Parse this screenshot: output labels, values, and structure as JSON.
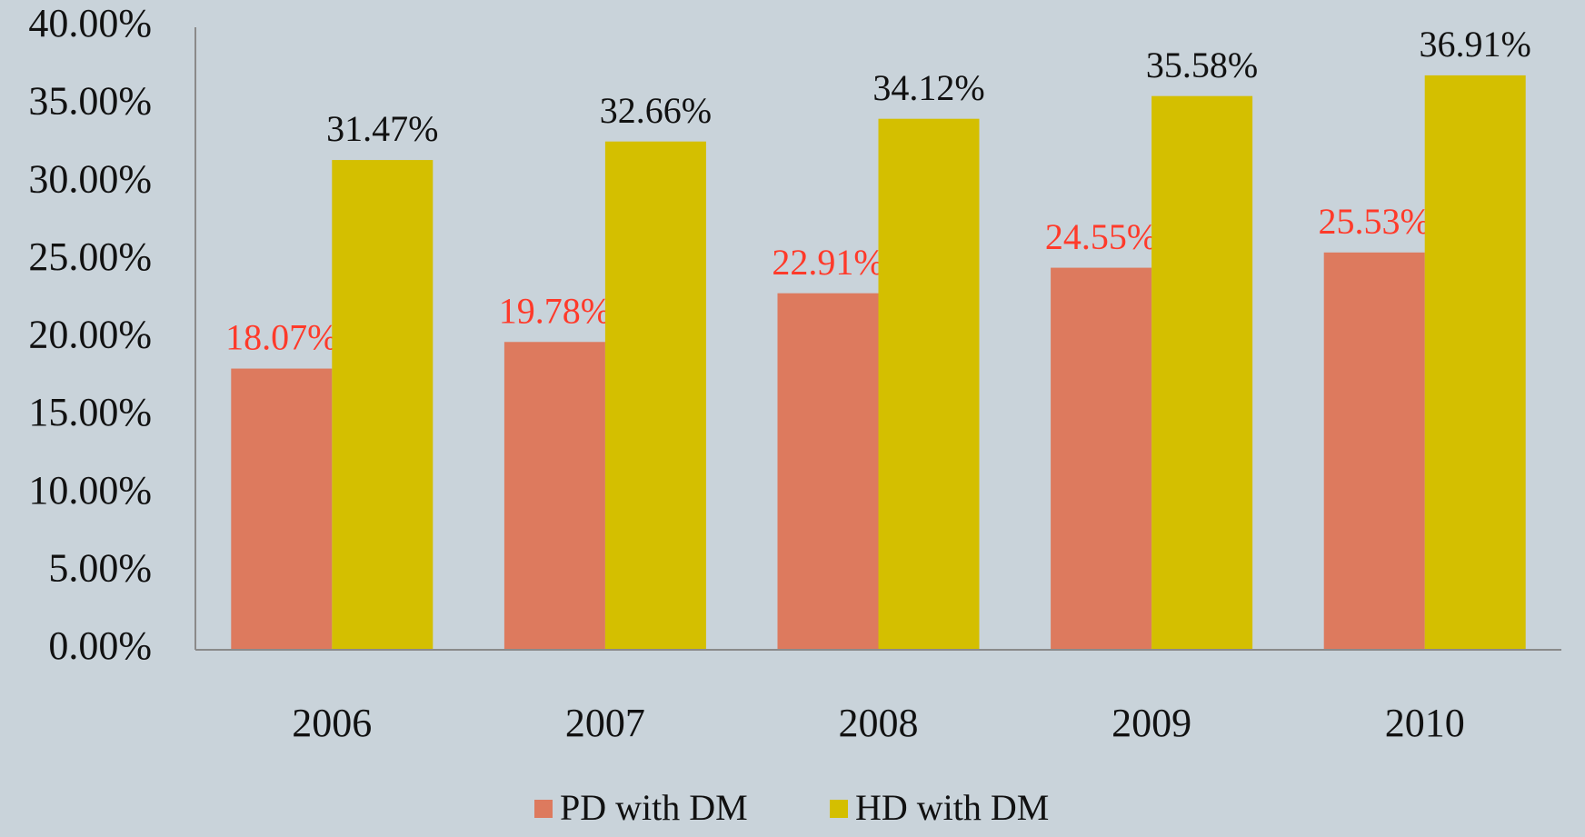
{
  "chart_data": {
    "type": "bar",
    "categories": [
      "2006",
      "2007",
      "2008",
      "2009",
      "2010"
    ],
    "series": [
      {
        "name": "PD with DM",
        "color": "#dd7a5e",
        "label_color": "#ff3a2a",
        "values": [
          18.07,
          19.78,
          22.91,
          24.55,
          25.53
        ],
        "value_labels": [
          "18.07%",
          "19.78%",
          "22.91%",
          "24.55%",
          "25.53%"
        ]
      },
      {
        "name": "HD with DM",
        "color": "#d4bf00",
        "label_color": "#111111",
        "values": [
          31.47,
          32.66,
          34.12,
          35.58,
          36.91
        ],
        "value_labels": [
          "31.47%",
          "32.66%",
          "34.12%",
          "35.58%",
          "36.91%"
        ]
      }
    ],
    "ylim": [
      0,
      40
    ],
    "yticks": [
      {
        "value": 0,
        "label": "0.00%"
      },
      {
        "value": 5,
        "label": "5.00%"
      },
      {
        "value": 10,
        "label": "10.00%"
      },
      {
        "value": 15,
        "label": "15.00%"
      },
      {
        "value": 20,
        "label": "20.00%"
      },
      {
        "value": 25,
        "label": "25.00%"
      },
      {
        "value": 30,
        "label": "30.00%"
      },
      {
        "value": 35,
        "label": "35.00%"
      },
      {
        "value": 40,
        "label": "40.00%"
      }
    ],
    "grid": false,
    "legend": "bottom"
  }
}
